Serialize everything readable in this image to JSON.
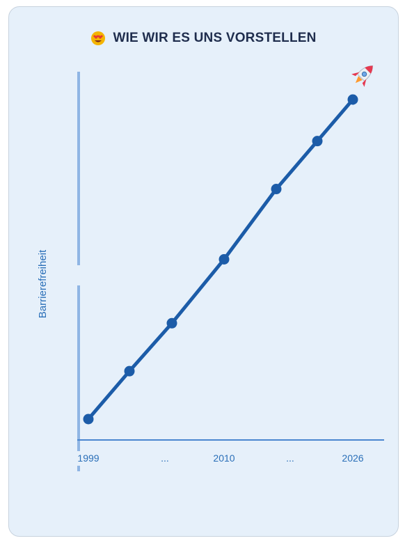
{
  "header": {
    "title": "WIE WIR ES UNS VORSTELLEN",
    "emoji": "smiling-face-with-heart-eyes"
  },
  "chart_data": {
    "type": "line",
    "title": "WIE WIR ES UNS VORSTELLEN",
    "ylabel": "Barrierefreiheit",
    "xlabel": "",
    "x_ticks": [
      "1999",
      "...",
      "2010",
      "...",
      "2026"
    ],
    "points": [
      {
        "x": 0,
        "y": 0.0
      },
      {
        "x": 1,
        "y": 0.15
      },
      {
        "x": 2,
        "y": 0.3
      },
      {
        "x": 3,
        "y": 0.5
      },
      {
        "x": 4,
        "y": 0.72
      },
      {
        "x": 5,
        "y": 0.87
      },
      {
        "x": 6,
        "y": 1.0
      }
    ],
    "end_marker": "rocket-icon",
    "series_color": "#1c5ca8",
    "axis_color": "#8fb5e4",
    "grid": false
  }
}
